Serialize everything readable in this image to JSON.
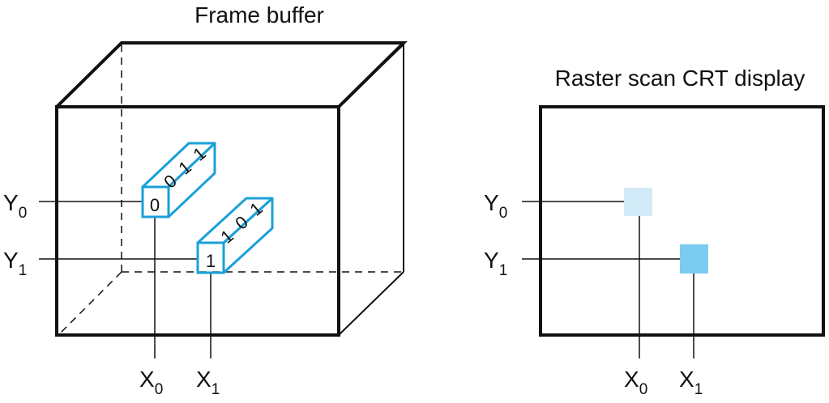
{
  "frame_buffer": {
    "title": "Frame buffer",
    "y_labels": [
      {
        "main": "Y",
        "sub": "0"
      },
      {
        "main": "Y",
        "sub": "1"
      }
    ],
    "x_labels": [
      {
        "main": "X",
        "sub": "0"
      },
      {
        "main": "X",
        "sub": "1"
      }
    ],
    "cells": [
      {
        "front_bit": "0",
        "bits": [
          "0",
          "1",
          "1"
        ]
      },
      {
        "front_bit": "1",
        "bits": [
          "1",
          "0",
          "1"
        ]
      }
    ],
    "highlight_color": "#1aa0d8"
  },
  "display": {
    "title": "Raster scan CRT display",
    "y_labels": [
      {
        "main": "Y",
        "sub": "0"
      },
      {
        "main": "Y",
        "sub": "1"
      }
    ],
    "x_labels": [
      {
        "main": "X",
        "sub": "0"
      },
      {
        "main": "X",
        "sub": "1"
      }
    ],
    "pixels": [
      {
        "name": "pixel-x0-y0",
        "color": "#d3eaf8"
      },
      {
        "name": "pixel-x1-y1",
        "color": "#7ccbf0"
      }
    ]
  }
}
